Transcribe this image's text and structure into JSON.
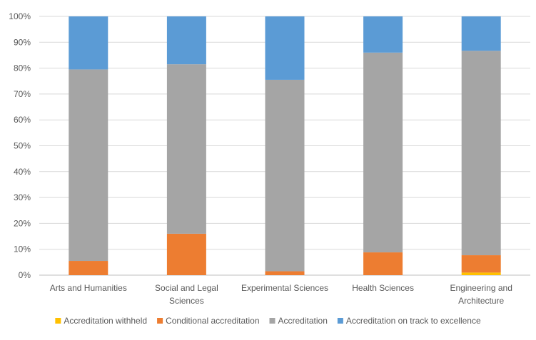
{
  "chart_data": {
    "type": "bar",
    "stacked": true,
    "normalized": true,
    "categories": [
      [
        "Arts and Humanities"
      ],
      [
        "Social and Legal",
        "Sciences"
      ],
      [
        "Experimental Sciences"
      ],
      [
        "Health Sciences"
      ],
      [
        "Engineering and",
        "Architecture"
      ]
    ],
    "series": [
      {
        "name": "Accreditation withheld",
        "color": "#FFC000",
        "values": [
          0,
          0,
          0,
          0,
          1
        ]
      },
      {
        "name": "Conditional accreditation",
        "color": "#ED7D31",
        "values": [
          5.5,
          16,
          1.5,
          8.8,
          6.7
        ]
      },
      {
        "name": "Accreditation",
        "color": "#A5A5A5",
        "values": [
          74,
          65.5,
          74,
          77.2,
          79
        ]
      },
      {
        "name": "Accreditation on track to excellence",
        "color": "#5B9BD5",
        "values": [
          20.5,
          18.5,
          24.5,
          14,
          13.3
        ]
      }
    ],
    "yticks": [
      "0%",
      "10%",
      "20%",
      "30%",
      "40%",
      "50%",
      "60%",
      "70%",
      "80%",
      "90%",
      "100%"
    ],
    "ylim": [
      0,
      100
    ],
    "grid": true,
    "legend_position": "bottom"
  }
}
